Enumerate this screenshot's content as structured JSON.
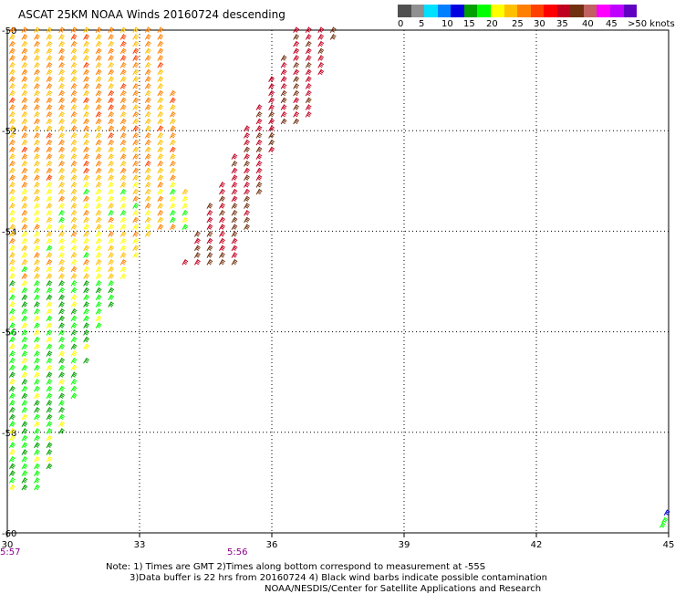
{
  "title": "ASCAT 25KM NOAA Winds 20160724 descending",
  "colorbar": {
    "colors": [
      "#505050",
      "#909090",
      "#00e0ff",
      "#0080ff",
      "#0000e0",
      "#00a000",
      "#00ff00",
      "#ffff00",
      "#ffc000",
      "#ff8000",
      "#ff4000",
      "#ff0000",
      "#c00020",
      "#703010",
      "#c06060",
      "#ff00ff",
      "#c000ff",
      "#6000c0"
    ],
    "labels": [
      "0",
      "5",
      "10",
      "15",
      "20",
      "25",
      "30",
      "35",
      "40",
      "45",
      ">50 knots"
    ]
  },
  "chart_data": {
    "type": "scatter",
    "title": "ASCAT 25KM NOAA Winds 20160724 descending",
    "xlabel": "",
    "ylabel": "",
    "xlim": [
      30,
      45
    ],
    "ylim": [
      -60,
      -50
    ],
    "x_ticks": [
      "30",
      "33",
      "36",
      "39",
      "42",
      "45"
    ],
    "y_ticks": [
      "-50",
      "-52",
      "-54",
      "-56",
      "-58",
      "-60"
    ],
    "grid": true,
    "swaths": [
      {
        "region": "east",
        "lon": [
          34.0,
          37.5
        ],
        "lat": [
          -50.0,
          -54.7
        ],
        "speed_range_knots": [
          35,
          40
        ]
      },
      {
        "region": "west-north",
        "lon": [
          30.0,
          33.5
        ],
        "lat": [
          -50.0,
          -54.0
        ],
        "speed_range_knots": [
          25,
          35
        ]
      },
      {
        "region": "west-south",
        "lon": [
          30.0,
          33.5
        ],
        "lat": [
          -54.0,
          -59.0
        ],
        "speed_range_knots": [
          15,
          30
        ]
      },
      {
        "region": "point",
        "lon": [
          44.8,
          45.0
        ],
        "lat": [
          -59.7,
          -59.9
        ],
        "speed_range_knots": [
          15,
          20
        ]
      }
    ]
  },
  "times": [
    "5:57",
    "5:56"
  ],
  "notes": [
    "Note: 1) Times are GMT 2)Times along bottom correspond to measurement at -55S",
    "3)Data buffer is 22 hrs from 20160724 4) Black wind barbs indicate possible contamination",
    "NOAA/NESDIS/Center for Satellite Applications and Research"
  ]
}
